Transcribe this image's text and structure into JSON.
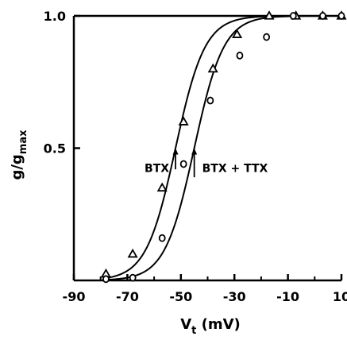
{
  "chart_data": {
    "type": "scatter",
    "xlabel_main": "V",
    "xlabel_sub": "t",
    "xlabel_unit": " (mV)",
    "ylabel_main": "g/g",
    "ylabel_sub": "max",
    "xlim": [
      -90,
      10
    ],
    "ylim": [
      0,
      1.0
    ],
    "x_ticks": [
      -90,
      -70,
      -50,
      -30,
      -10,
      10
    ],
    "x_tick_labels": [
      "-90",
      "-70",
      "-50",
      "-30",
      "-10",
      "10"
    ],
    "y_ticks": [
      0.5,
      1.0
    ],
    "y_tick_labels": [
      "0.5",
      "1.0"
    ],
    "grid": false,
    "series": [
      {
        "name": "BTX",
        "marker": "triangle",
        "x": [
          -78,
          -68,
          -57,
          -49,
          -38,
          -29,
          -17,
          -7,
          3,
          10
        ],
        "y": [
          0.025,
          0.1,
          0.35,
          0.6,
          0.8,
          0.93,
          1.0,
          1.0,
          1.0,
          1.0
        ],
        "fit_curve": {
          "v_half": -52,
          "slope": 5.5
        }
      },
      {
        "name": "BTX + TTX",
        "marker": "circle",
        "x": [
          -78,
          -68,
          -57,
          -49,
          -39,
          -28,
          -18,
          -8,
          3,
          10
        ],
        "y": [
          0.005,
          0.01,
          0.16,
          0.44,
          0.68,
          0.85,
          0.92,
          1.0,
          1.0,
          1.0
        ],
        "fit_curve": {
          "v_half": -45,
          "slope": 5.5
        }
      }
    ],
    "annotations": [
      {
        "text": "BTX",
        "arrow_x": -52,
        "arrow_y_from": 0.42,
        "arrow_y_to": 0.5
      },
      {
        "text": "BTX + TTX",
        "arrow_x": -45,
        "arrow_y_from": 0.39,
        "arrow_y_to": 0.5
      }
    ]
  }
}
